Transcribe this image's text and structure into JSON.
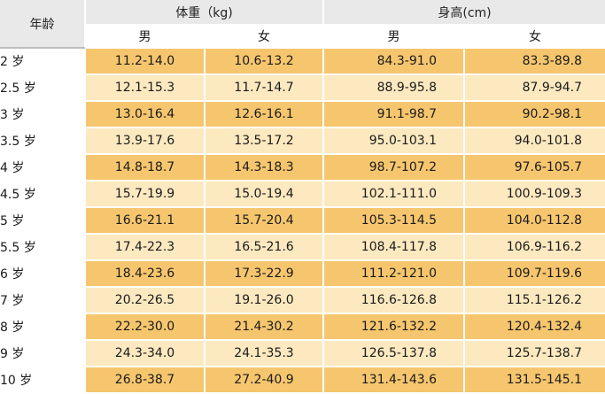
{
  "header": {
    "age": "年龄",
    "weight": "体重（kg)",
    "height": "身高(cm)",
    "male": "男",
    "female": "女"
  },
  "rows": [
    {
      "age": "2 岁",
      "w_m": "11.2-14.0",
      "w_f": "10.6-13.2",
      "h_m": "84.3-91.0",
      "h_f": "83.3-89.8"
    },
    {
      "age": "2.5 岁",
      "w_m": "12.1-15.3",
      "w_f": "11.7-14.7",
      "h_m": "88.9-95.8",
      "h_f": "87.9-94.7"
    },
    {
      "age": "3 岁",
      "w_m": "13.0-16.4",
      "w_f": "12.6-16.1",
      "h_m": "91.1-98.7",
      "h_f": "90.2-98.1"
    },
    {
      "age": "3.5 岁",
      "w_m": "13.9-17.6",
      "w_f": "13.5-17.2",
      "h_m": "95.0-103.1",
      "h_f": "94.0-101.8"
    },
    {
      "age": "4 岁",
      "w_m": "14.8-18.7",
      "w_f": "14.3-18.3",
      "h_m": "98.7-107.2",
      "h_f": "97.6-105.7"
    },
    {
      "age": "4.5 岁",
      "w_m": "15.7-19.9",
      "w_f": "15.0-19.4",
      "h_m": "102.1-111.0",
      "h_f": "100.9-109.3"
    },
    {
      "age": "5 岁",
      "w_m": "16.6-21.1",
      "w_f": "15.7-20.4",
      "h_m": "105.3-114.5",
      "h_f": "104.0-112.8"
    },
    {
      "age": "5.5 岁",
      "w_m": "17.4-22.3",
      "w_f": "16.5-21.6",
      "h_m": "108.4-117.8",
      "h_f": "106.9-116.2"
    },
    {
      "age": "6 岁",
      "w_m": "18.4-23.6",
      "w_f": "17.3-22.9",
      "h_m": "111.2-121.0",
      "h_f": "109.7-119.6"
    },
    {
      "age": "7 岁",
      "w_m": "20.2-26.5",
      "w_f": "19.1-26.0",
      "h_m": "116.6-126.8",
      "h_f": "115.1-126.2"
    },
    {
      "age": "8 岁",
      "w_m": "22.2-30.0",
      "w_f": "21.4-30.2",
      "h_m": "121.6-132.2",
      "h_f": "120.4-132.4"
    },
    {
      "age": "9 岁",
      "w_m": "24.3-34.0",
      "w_f": "24.1-35.3",
      "h_m": "126.5-137.8",
      "h_f": "125.7-138.7"
    },
    {
      "age": "10 岁",
      "w_m": "26.8-38.7",
      "w_f": "27.2-40.9",
      "h_m": "131.4-143.6",
      "h_f": "131.5-145.1"
    }
  ],
  "colors": {
    "row_dark": "#f6c66e",
    "row_light": "#fde9c0",
    "header_bg": "#e9e9e9"
  }
}
